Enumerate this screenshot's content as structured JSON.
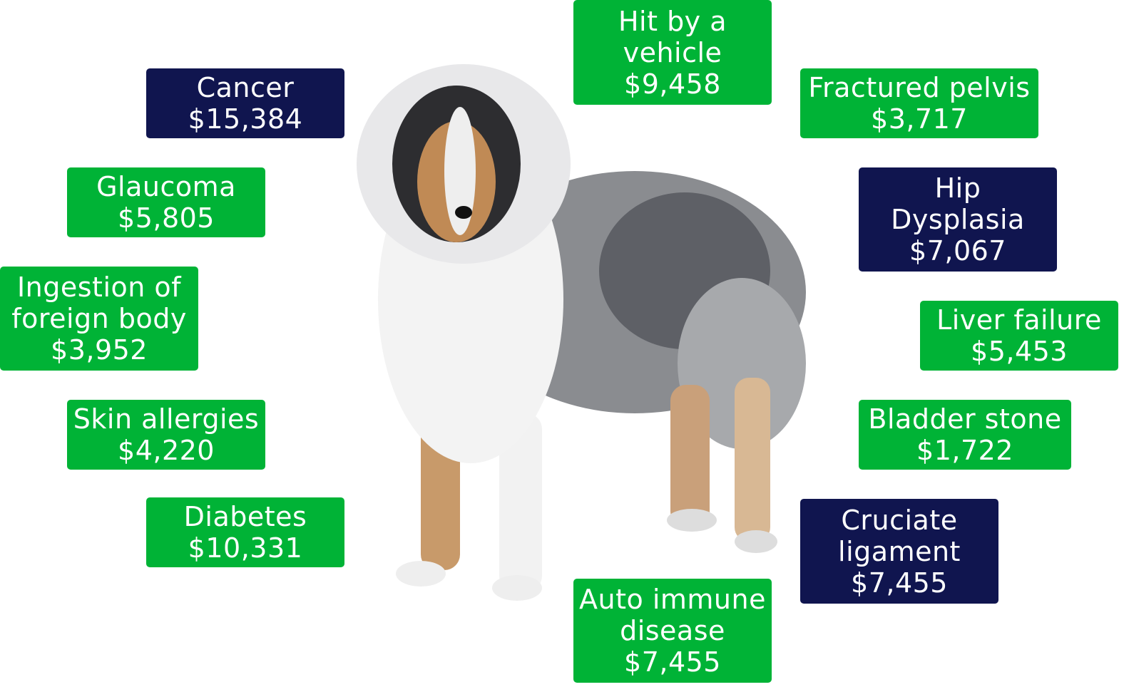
{
  "colors": {
    "green": "#00b336",
    "navy": "#10154f"
  },
  "image": {
    "subject": "dog-photo"
  },
  "conditions": [
    {
      "name": "Hit by a vehicle",
      "lines": [
        "Hit by a",
        "vehicle"
      ],
      "cost": "$9,458",
      "color": "green"
    },
    {
      "name": "Cancer",
      "lines": [
        "Cancer"
      ],
      "cost": "$15,384",
      "color": "navy"
    },
    {
      "name": "Fractured pelvis",
      "lines": [
        "Fractured pelvis"
      ],
      "cost": "$3,717",
      "color": "green"
    },
    {
      "name": "Glaucoma",
      "lines": [
        "Glaucoma"
      ],
      "cost": "$5,805",
      "color": "green"
    },
    {
      "name": "Hip Dysplasia",
      "lines": [
        "Hip",
        "Dysplasia"
      ],
      "cost": "$7,067",
      "color": "navy"
    },
    {
      "name": "Ingestion of foreign body",
      "lines": [
        "Ingestion of",
        "foreign body"
      ],
      "cost": "$3,952",
      "color": "green"
    },
    {
      "name": "Liver failure",
      "lines": [
        "Liver failure"
      ],
      "cost": "$5,453",
      "color": "green"
    },
    {
      "name": "Skin allergies",
      "lines": [
        "Skin allergies"
      ],
      "cost": "$4,220",
      "color": "green"
    },
    {
      "name": "Bladder stone",
      "lines": [
        "Bladder stone"
      ],
      "cost": "$1,722",
      "color": "green"
    },
    {
      "name": "Diabetes",
      "lines": [
        "Diabetes"
      ],
      "cost": "$10,331",
      "color": "green"
    },
    {
      "name": "Cruciate ligament",
      "lines": [
        "Cruciate",
        "ligament"
      ],
      "cost": "$7,455",
      "color": "navy"
    },
    {
      "name": "Auto immune disease",
      "lines": [
        "Auto immune",
        "disease"
      ],
      "cost": "$7,455",
      "color": "green"
    }
  ]
}
